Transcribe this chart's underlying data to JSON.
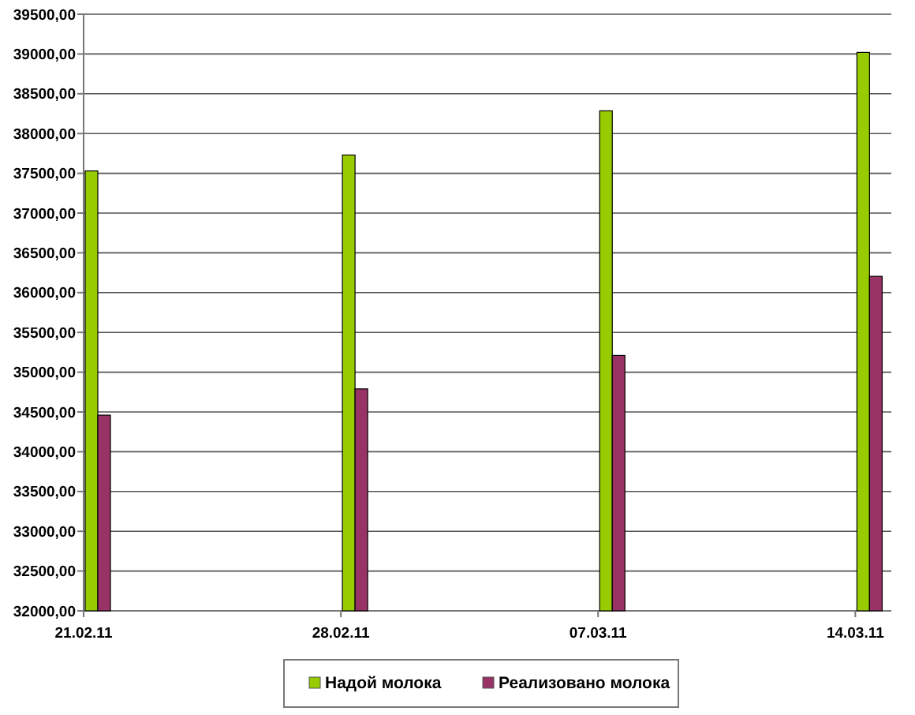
{
  "chart_data": {
    "type": "bar",
    "categories": [
      "21.02.11",
      "28.02.11",
      "07.03.11",
      "14.03.11"
    ],
    "series": [
      {
        "name": "Надой молока",
        "color": "#99cc00",
        "values": [
          37530,
          37730,
          38285,
          39020
        ]
      },
      {
        "name": "Реализовано молока",
        "color": "#993366",
        "values": [
          34460,
          34790,
          35210,
          36205
        ]
      }
    ],
    "ylim": [
      32000,
      39500
    ],
    "yticks": [
      {
        "value": 32000,
        "label": "32000,00"
      },
      {
        "value": 32500,
        "label": "32500,00"
      },
      {
        "value": 33000,
        "label": "33000,00"
      },
      {
        "value": 33500,
        "label": "33500,00"
      },
      {
        "value": 34000,
        "label": "34000,00"
      },
      {
        "value": 34500,
        "label": "34500,00"
      },
      {
        "value": 35000,
        "label": "35000,00"
      },
      {
        "value": 35500,
        "label": "35500,00"
      },
      {
        "value": 36000,
        "label": "36000,00"
      },
      {
        "value": 36500,
        "label": "36500,00"
      },
      {
        "value": 37000,
        "label": "37000,00"
      },
      {
        "value": 37500,
        "label": "37500,00"
      },
      {
        "value": 38000,
        "label": "38000,00"
      },
      {
        "value": 38500,
        "label": "38500,00"
      },
      {
        "value": 39000,
        "label": "39000,00"
      },
      {
        "value": 39500,
        "label": "39500,00"
      }
    ],
    "grid": "y",
    "legend": "bottom"
  }
}
